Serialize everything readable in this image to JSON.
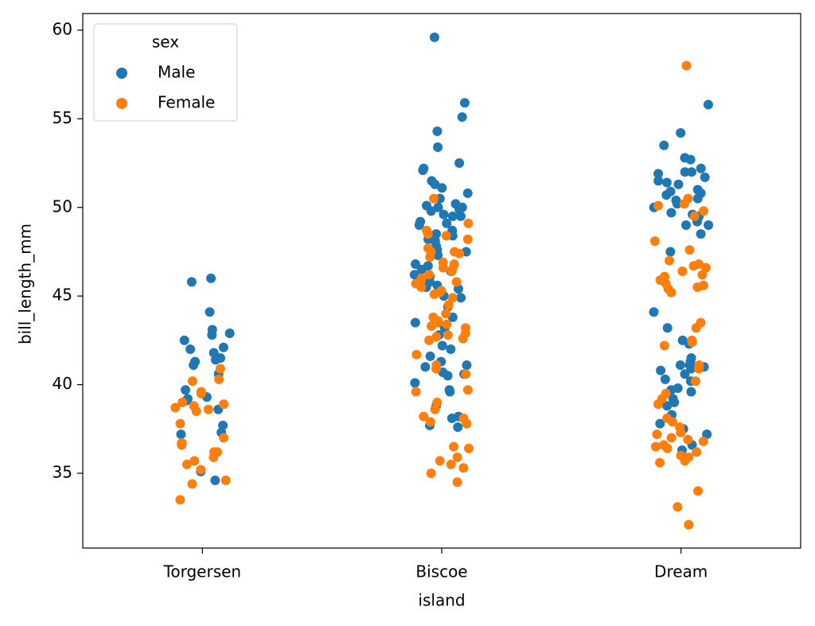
{
  "chart_data": {
    "type": "strip",
    "xlabel": "island",
    "ylabel": "bill_length_mm",
    "categories": [
      "Torgersen",
      "Biscoe",
      "Dream"
    ],
    "legend_title": "sex",
    "legend": "upper left",
    "ylim": [
      30.78,
      60.94
    ],
    "yticks": [
      35,
      40,
      45,
      50,
      55,
      60
    ],
    "series": [
      {
        "name": "Male",
        "color": "#1f77b4",
        "values": [
          [
            46.0,
            45.8,
            44.1,
            42.9,
            43.1,
            42.8,
            42.5,
            42.1,
            41.8,
            41.5,
            41.4,
            41.1,
            40.6,
            39.7,
            39.3,
            39.2,
            39.1,
            38.6,
            37.7,
            37.3,
            37.2,
            35.1,
            34.6,
            41.3,
            42.0
          ],
          [
            59.6,
            55.9,
            55.1,
            54.3,
            53.4,
            52.5,
            52.2,
            52.1,
            51.5,
            51.3,
            51.1,
            50.8,
            50.5,
            50.2,
            50.1,
            50.0,
            50.0,
            49.9,
            49.8,
            49.6,
            49.5,
            49.5,
            49.2,
            49.1,
            49.0,
            48.7,
            48.5,
            48.4,
            48.2,
            48.1,
            47.8,
            47.6,
            47.5,
            47.3,
            46.8,
            46.7,
            46.5,
            46.4,
            46.2,
            46.1,
            45.8,
            45.6,
            45.5,
            45.4,
            45.2,
            45.0,
            44.9,
            44.4,
            43.8,
            43.5,
            43.2,
            42.8,
            42.2,
            42.0,
            41.6,
            41.3,
            41.1,
            41.0,
            40.7,
            40.6,
            40.5,
            40.1,
            39.7,
            39.6,
            38.8,
            38.2,
            38.1,
            37.7,
            37.6
          ],
          [
            55.8,
            54.2,
            53.5,
            52.8,
            52.7,
            52.2,
            52.0,
            52.0,
            51.9,
            51.7,
            51.5,
            51.4,
            51.3,
            51.0,
            50.9,
            50.8,
            50.7,
            50.5,
            50.4,
            50.2,
            50.0,
            49.7,
            49.6,
            49.5,
            49.2,
            49.0,
            49.0,
            48.5,
            47.5,
            44.1,
            43.2,
            42.5,
            42.3,
            41.5,
            41.3,
            41.1,
            41.1,
            41.0,
            40.9,
            40.8,
            40.6,
            40.3,
            40.2,
            39.8,
            39.7,
            39.6,
            39.2,
            39.0,
            38.8,
            38.3,
            37.8,
            37.5,
            37.2,
            36.6,
            36.3
          ]
        ]
      },
      {
        "name": "Female",
        "color": "#ff7f0e",
        "values": [
          [
            40.9,
            40.3,
            40.2,
            39.6,
            39.5,
            39.0,
            38.9,
            38.8,
            38.7,
            38.6,
            38.5,
            37.8,
            36.7,
            36.7,
            36.6,
            36.2,
            36.2,
            35.9,
            35.7,
            35.5,
            35.2,
            34.6,
            34.4,
            33.5,
            37.0
          ],
          [
            50.5,
            49.1,
            48.7,
            48.5,
            48.4,
            48.2,
            47.7,
            47.5,
            47.5,
            47.4,
            47.2,
            46.9,
            46.8,
            46.6,
            46.5,
            46.4,
            46.2,
            46.0,
            45.8,
            45.7,
            45.5,
            45.3,
            45.2,
            45.1,
            44.9,
            44.5,
            44.0,
            43.8,
            43.6,
            43.5,
            43.4,
            43.3,
            43.2,
            42.9,
            42.8,
            42.7,
            42.6,
            42.5,
            41.7,
            41.1,
            40.9,
            40.6,
            39.7,
            39.6,
            39.0,
            38.6,
            38.2,
            38.1,
            37.9,
            37.8,
            36.5,
            36.4,
            35.9,
            35.7,
            35.5,
            35.3,
            35.0,
            34.5
          ],
          [
            58.0,
            50.5,
            50.2,
            50.1,
            49.8,
            49.5,
            48.1,
            47.6,
            47.0,
            46.8,
            46.7,
            46.6,
            46.4,
            46.2,
            46.1,
            45.9,
            45.7,
            45.6,
            45.5,
            45.4,
            45.2,
            43.5,
            43.2,
            42.5,
            42.4,
            42.2,
            41.1,
            40.9,
            40.2,
            39.5,
            39.2,
            38.9,
            38.1,
            37.9,
            37.6,
            37.3,
            37.2,
            37.0,
            36.9,
            36.8,
            36.6,
            36.5,
            36.4,
            36.2,
            36.0,
            35.9,
            35.7,
            35.6,
            34.0,
            33.1,
            32.1
          ]
        ]
      }
    ]
  }
}
